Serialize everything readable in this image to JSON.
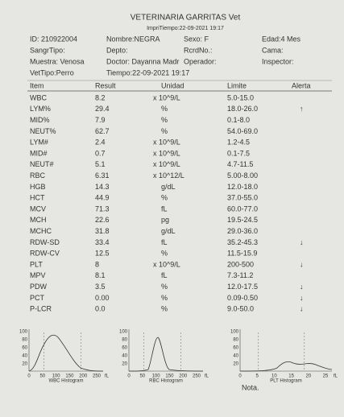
{
  "header": {
    "title": "VETERINARIA GARRITAS  Vet",
    "print_time": "ImpriTiempo:22-09-2021 19:17"
  },
  "fields": [
    [
      "ID: 210922004",
      "Nombre:NEGRA",
      "Sexo: F",
      "Edad:4 Mes"
    ],
    [
      "SangrTipo:",
      "Depto:",
      "RcrdNo.:",
      "Cama:"
    ],
    [
      "Muestra: Venosa",
      "Doctor: Dayanna Madr",
      "Operador:",
      "Inspector:"
    ],
    [
      "VetTipo:Perro",
      "Tiempo:22-09-2021 19:17"
    ]
  ],
  "table": {
    "columns": [
      "Item",
      "Result",
      "Unidad",
      "Limite",
      "Alerta"
    ],
    "rows": [
      {
        "item": "WBC",
        "result": "8.2",
        "unit": "x 10^9/L",
        "limit": "5.0-15.0"
      },
      {
        "item": "LYM%",
        "result": "29.4",
        "unit": "%",
        "limit": "18.0-26.0",
        "alert": "↑"
      },
      {
        "item": "MID%",
        "result": "7.9",
        "unit": "%",
        "limit": "0.1-8.0"
      },
      {
        "item": "NEUT%",
        "result": "62.7",
        "unit": "%",
        "limit": "54.0-69.0"
      },
      {
        "item": "LYM#",
        "result": "2.4",
        "unit": "x 10^9/L",
        "limit": "1.2-4.5"
      },
      {
        "item": "MID#",
        "result": "0.7",
        "unit": "x 10^9/L",
        "limit": "0.1-7.5"
      },
      {
        "item": "NEUT#",
        "result": "5.1",
        "unit": "x 10^9/L",
        "limit": "4.7-11.5"
      },
      {
        "item": "RBC",
        "result": "6.31",
        "unit": "x 10^12/L",
        "limit": "5.00-8.00"
      },
      {
        "item": "HGB",
        "result": "14.3",
        "unit": "g/dL",
        "limit": "12.0-18.0"
      },
      {
        "item": "HCT",
        "result": "44.9",
        "unit": "%",
        "limit": "37.0-55.0"
      },
      {
        "item": "MCV",
        "result": "71.3",
        "unit": "fL",
        "limit": "60.0-77.0"
      },
      {
        "item": "MCH",
        "result": "22.6",
        "unit": "pg",
        "limit": "19.5-24.5"
      },
      {
        "item": "MCHC",
        "result": "31.8",
        "unit": "g/dL",
        "limit": "29.0-36.0"
      },
      {
        "item": "RDW-SD",
        "result": "33.4",
        "unit": "fL",
        "limit": "35.2-45.3",
        "alert": "↓"
      },
      {
        "item": "RDW-CV",
        "result": "12.5",
        "unit": "%",
        "limit": "11.5-15.9"
      },
      {
        "item": "PLT",
        "result": "8",
        "unit": "x 10^9/L",
        "limit": "200-500",
        "alert": "↓"
      },
      {
        "item": "MPV",
        "result": "8.1",
        "unit": "fL",
        "limit": "7.3-11.2"
      },
      {
        "item": "PDW",
        "result": "3.5",
        "unit": "%",
        "limit": "12.0-17.5",
        "alert": "↓"
      },
      {
        "item": "PCT",
        "result": "0.00",
        "unit": "%",
        "limit": "0.09-0.50",
        "alert": "↓"
      },
      {
        "item": "P-LCR",
        "result": "0.0",
        "unit": "%",
        "limit": "9.0-50.0",
        "alert": "↓"
      }
    ]
  },
  "histograms": [
    {
      "caption": "WBC Histogram",
      "yticks": [
        "100",
        "80",
        "60",
        "40",
        "20"
      ],
      "xticks": [
        "0",
        "50",
        "100",
        "150",
        "200",
        "250"
      ],
      "x_unit": "fL"
    },
    {
      "caption": "RBC Histogram",
      "yticks": [
        "100",
        "80",
        "60",
        "40",
        "20"
      ],
      "xticks": [
        "0",
        "50",
        "100",
        "150",
        "200",
        "250"
      ],
      "x_unit": "fL"
    },
    {
      "caption": "PLT Histogram",
      "yticks": [
        "100",
        "80",
        "60",
        "40",
        "20"
      ],
      "xticks": [
        "0",
        "5",
        "10",
        "15",
        "20",
        "25"
      ],
      "x_unit": "fL"
    }
  ],
  "note": "Nota."
}
